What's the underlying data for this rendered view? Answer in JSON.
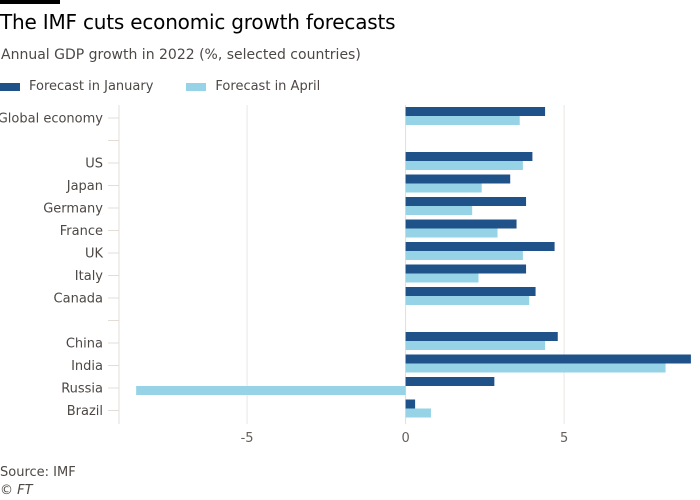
{
  "header": {
    "title": "The IMF cuts economic growth forecasts",
    "subtitle": "Annual GDP growth in 2022 (%, selected countries)"
  },
  "footer": {
    "source": "Source: IMF",
    "copyright": "© FT"
  },
  "colors": {
    "january": "#1f5289",
    "april": "#96d3e6",
    "grid": "#ece6e1",
    "axis": "#e3ddd8"
  },
  "chart_data": {
    "type": "bar",
    "orientation": "horizontal",
    "title": "The IMF cuts economic growth forecasts",
    "subtitle": "Annual GDP growth in 2022 (%, selected countries)",
    "xlabel": "",
    "ylabel": "",
    "xlim": [
      -9,
      9
    ],
    "xticks": [
      -5,
      0,
      5
    ],
    "xtick_labels": [
      "-5",
      "0",
      "5"
    ],
    "grid": true,
    "legend_position": "top-left",
    "categories": [
      "Global economy",
      "",
      "US",
      "Japan",
      "Germany",
      "France",
      "UK",
      "Italy",
      "Canada",
      "",
      "China",
      "India",
      "Russia",
      "Brazil"
    ],
    "series": [
      {
        "name": "Forecast in January",
        "values": [
          4.4,
          null,
          4.0,
          3.3,
          3.8,
          3.5,
          4.7,
          3.8,
          4.1,
          null,
          4.8,
          9.0,
          2.8,
          0.3
        ]
      },
      {
        "name": "Forecast in April",
        "values": [
          3.6,
          null,
          3.7,
          2.4,
          2.1,
          2.9,
          3.7,
          2.3,
          3.9,
          null,
          4.4,
          8.2,
          -8.5,
          0.8
        ]
      }
    ]
  }
}
